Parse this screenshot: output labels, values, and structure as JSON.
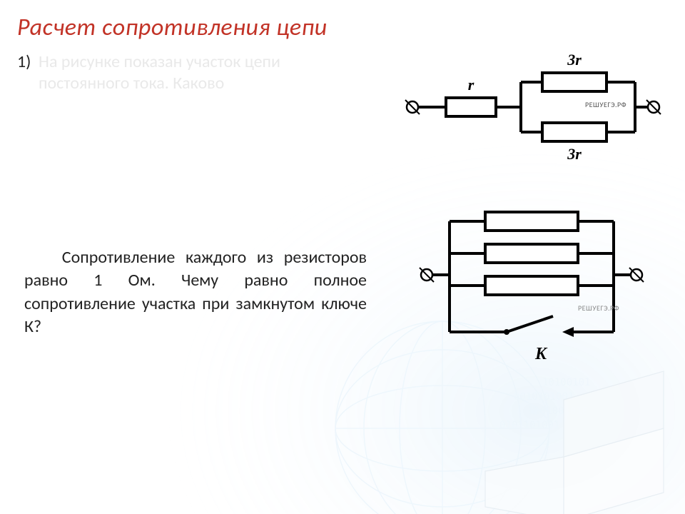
{
  "title": {
    "text": "Расчет сопротивления цепи",
    "color": "#c23327"
  },
  "problem1": {
    "number": "1)",
    "text": "На рисунке показан участок цепи постоянного тока. Каково",
    "text_color": "#e9e9e9"
  },
  "problem2": {
    "text": "Сопротивление каждого из резисторов равно 1 Ом. Чему равно полное сопротивление участка при замкнутом ключе К?"
  },
  "watermark": "РЕШУЕГЭ.РФ",
  "circuit1": {
    "stroke": "#000000",
    "stroke_width": 4,
    "text_color": "#000000",
    "label_font": "bold italic 22px 'Times New Roman', serif",
    "r_series_label": "r",
    "r_top_label": "3r",
    "r_bottom_label": "3r"
  },
  "circuit2": {
    "stroke": "#000000",
    "stroke_width": 4,
    "text_color": "#000000",
    "label_font": "bold italic 24px 'Times New Roman', serif",
    "key_label": "K"
  },
  "bg": {
    "accent": "#6fb7e9"
  }
}
